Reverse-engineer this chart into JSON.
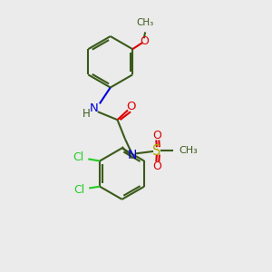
{
  "bg_color": "#ebebeb",
  "bond_color": "#3a5a1a",
  "N_color": "#0000dd",
  "O_color": "#dd0000",
  "S_color": "#aaaa00",
  "Cl_color": "#22cc22",
  "line_width": 1.5,
  "dpi": 100,
  "xlim": [
    0,
    10
  ],
  "ylim": [
    0,
    10
  ]
}
